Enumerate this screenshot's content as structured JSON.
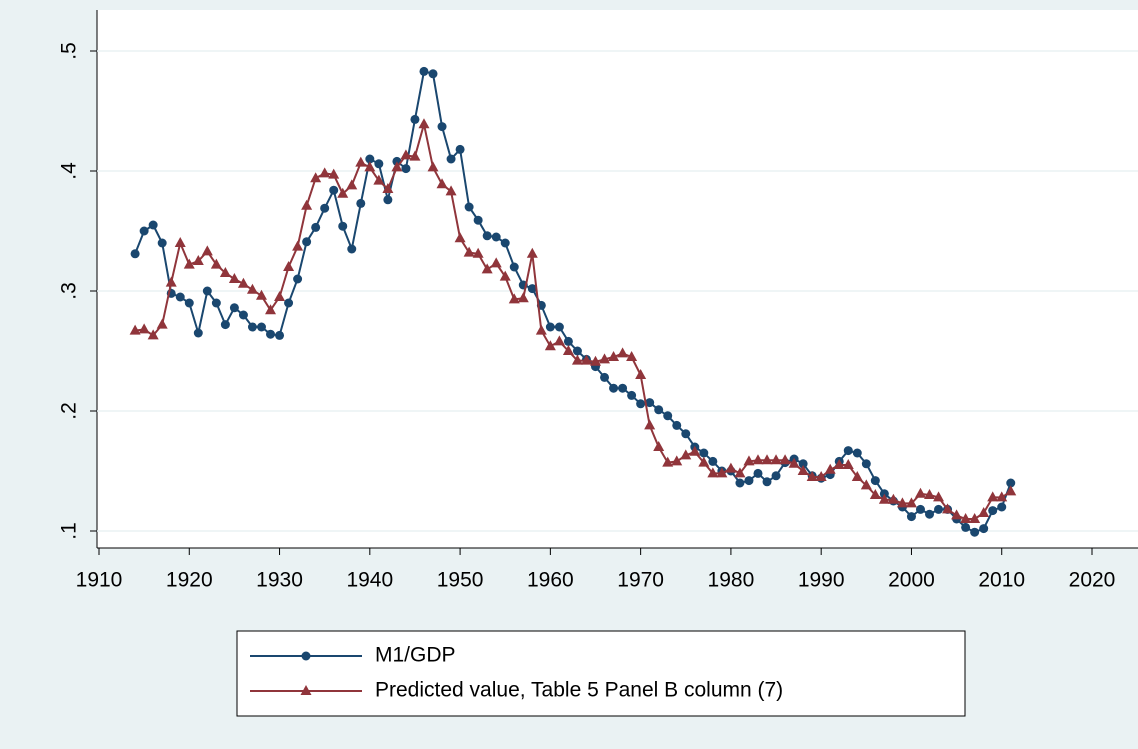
{
  "chart_data": {
    "type": "line",
    "x": [
      1914,
      1915,
      1916,
      1917,
      1918,
      1919,
      1920,
      1921,
      1922,
      1923,
      1924,
      1925,
      1926,
      1927,
      1928,
      1929,
      1930,
      1931,
      1932,
      1933,
      1934,
      1935,
      1936,
      1937,
      1938,
      1939,
      1940,
      1941,
      1942,
      1943,
      1944,
      1945,
      1946,
      1947,
      1948,
      1949,
      1950,
      1951,
      1952,
      1953,
      1954,
      1955,
      1956,
      1957,
      1958,
      1959,
      1960,
      1961,
      1962,
      1963,
      1964,
      1965,
      1966,
      1967,
      1968,
      1969,
      1970,
      1971,
      1972,
      1973,
      1974,
      1975,
      1976,
      1977,
      1978,
      1979,
      1980,
      1981,
      1982,
      1983,
      1984,
      1985,
      1986,
      1987,
      1988,
      1989,
      1990,
      1991,
      1992,
      1993,
      1994,
      1995,
      1996,
      1997,
      1998,
      1999,
      2000,
      2001,
      2002,
      2003,
      2004,
      2005,
      2006,
      2007,
      2008,
      2009,
      2010,
      2011
    ],
    "series": [
      {
        "name": "M1/GDP",
        "color": "#1a476f",
        "marker": "circle",
        "values": [
          0.331,
          0.35,
          0.355,
          0.34,
          0.298,
          0.295,
          0.29,
          0.265,
          0.3,
          0.29,
          0.272,
          0.286,
          0.28,
          0.27,
          0.27,
          0.264,
          0.263,
          0.29,
          0.31,
          0.341,
          0.353,
          0.369,
          0.384,
          0.354,
          0.335,
          0.373,
          0.41,
          0.406,
          0.376,
          0.408,
          0.402,
          0.443,
          0.483,
          0.481,
          0.437,
          0.41,
          0.418,
          0.37,
          0.359,
          0.346,
          0.345,
          0.34,
          0.32,
          0.305,
          0.302,
          0.288,
          0.27,
          0.27,
          0.258,
          0.25,
          0.243,
          0.237,
          0.228,
          0.219,
          0.219,
          0.213,
          0.206,
          0.207,
          0.201,
          0.196,
          0.188,
          0.181,
          0.17,
          0.165,
          0.158,
          0.15,
          0.15,
          0.14,
          0.142,
          0.148,
          0.141,
          0.146,
          0.157,
          0.16,
          0.156,
          0.146,
          0.144,
          0.147,
          0.158,
          0.167,
          0.165,
          0.156,
          0.142,
          0.131,
          0.125,
          0.12,
          0.112,
          0.118,
          0.114,
          0.118,
          0.118,
          0.11,
          0.103,
          0.099,
          0.102,
          0.117,
          0.12,
          0.14
        ]
      },
      {
        "name": "Predicted value, Table 5 Panel B column (7)",
        "color": "#90353b",
        "marker": "triangle",
        "values": [
          0.267,
          0.268,
          0.263,
          0.272,
          0.307,
          0.34,
          0.322,
          0.325,
          0.333,
          0.322,
          0.315,
          0.31,
          0.306,
          0.301,
          0.296,
          0.284,
          0.295,
          0.32,
          0.337,
          0.371,
          0.394,
          0.398,
          0.397,
          0.381,
          0.388,
          0.407,
          0.403,
          0.392,
          0.385,
          0.403,
          0.413,
          0.412,
          0.439,
          0.403,
          0.389,
          0.383,
          0.344,
          0.332,
          0.331,
          0.318,
          0.323,
          0.312,
          0.293,
          0.294,
          0.331,
          0.267,
          0.254,
          0.258,
          0.25,
          0.242,
          0.242,
          0.241,
          0.243,
          0.245,
          0.248,
          0.245,
          0.23,
          0.188,
          0.17,
          0.157,
          0.158,
          0.163,
          0.166,
          0.157,
          0.148,
          0.148,
          0.152,
          0.148,
          0.158,
          0.159,
          0.159,
          0.159,
          0.159,
          0.156,
          0.15,
          0.145,
          0.145,
          0.151,
          0.155,
          0.155,
          0.145,
          0.138,
          0.13,
          0.126,
          0.126,
          0.123,
          0.123,
          0.131,
          0.13,
          0.128,
          0.118,
          0.113,
          0.11,
          0.11,
          0.115,
          0.128,
          0.128,
          0.133
        ]
      }
    ],
    "xlim": [
      1910,
      2020
    ],
    "xticks": [
      1910,
      1920,
      1930,
      1940,
      1950,
      1960,
      1970,
      1980,
      1990,
      2000,
      2010,
      2020
    ],
    "ylim": [
      0.1,
      0.5
    ],
    "yticks": [
      {
        "value": 0.1,
        "label": ".1"
      },
      {
        "value": 0.2,
        "label": ".2"
      },
      {
        "value": 0.3,
        "label": ".3"
      },
      {
        "value": 0.4,
        "label": ".4"
      },
      {
        "value": 0.5,
        "label": ".5"
      }
    ],
    "grid": true,
    "legend": "bottom"
  }
}
